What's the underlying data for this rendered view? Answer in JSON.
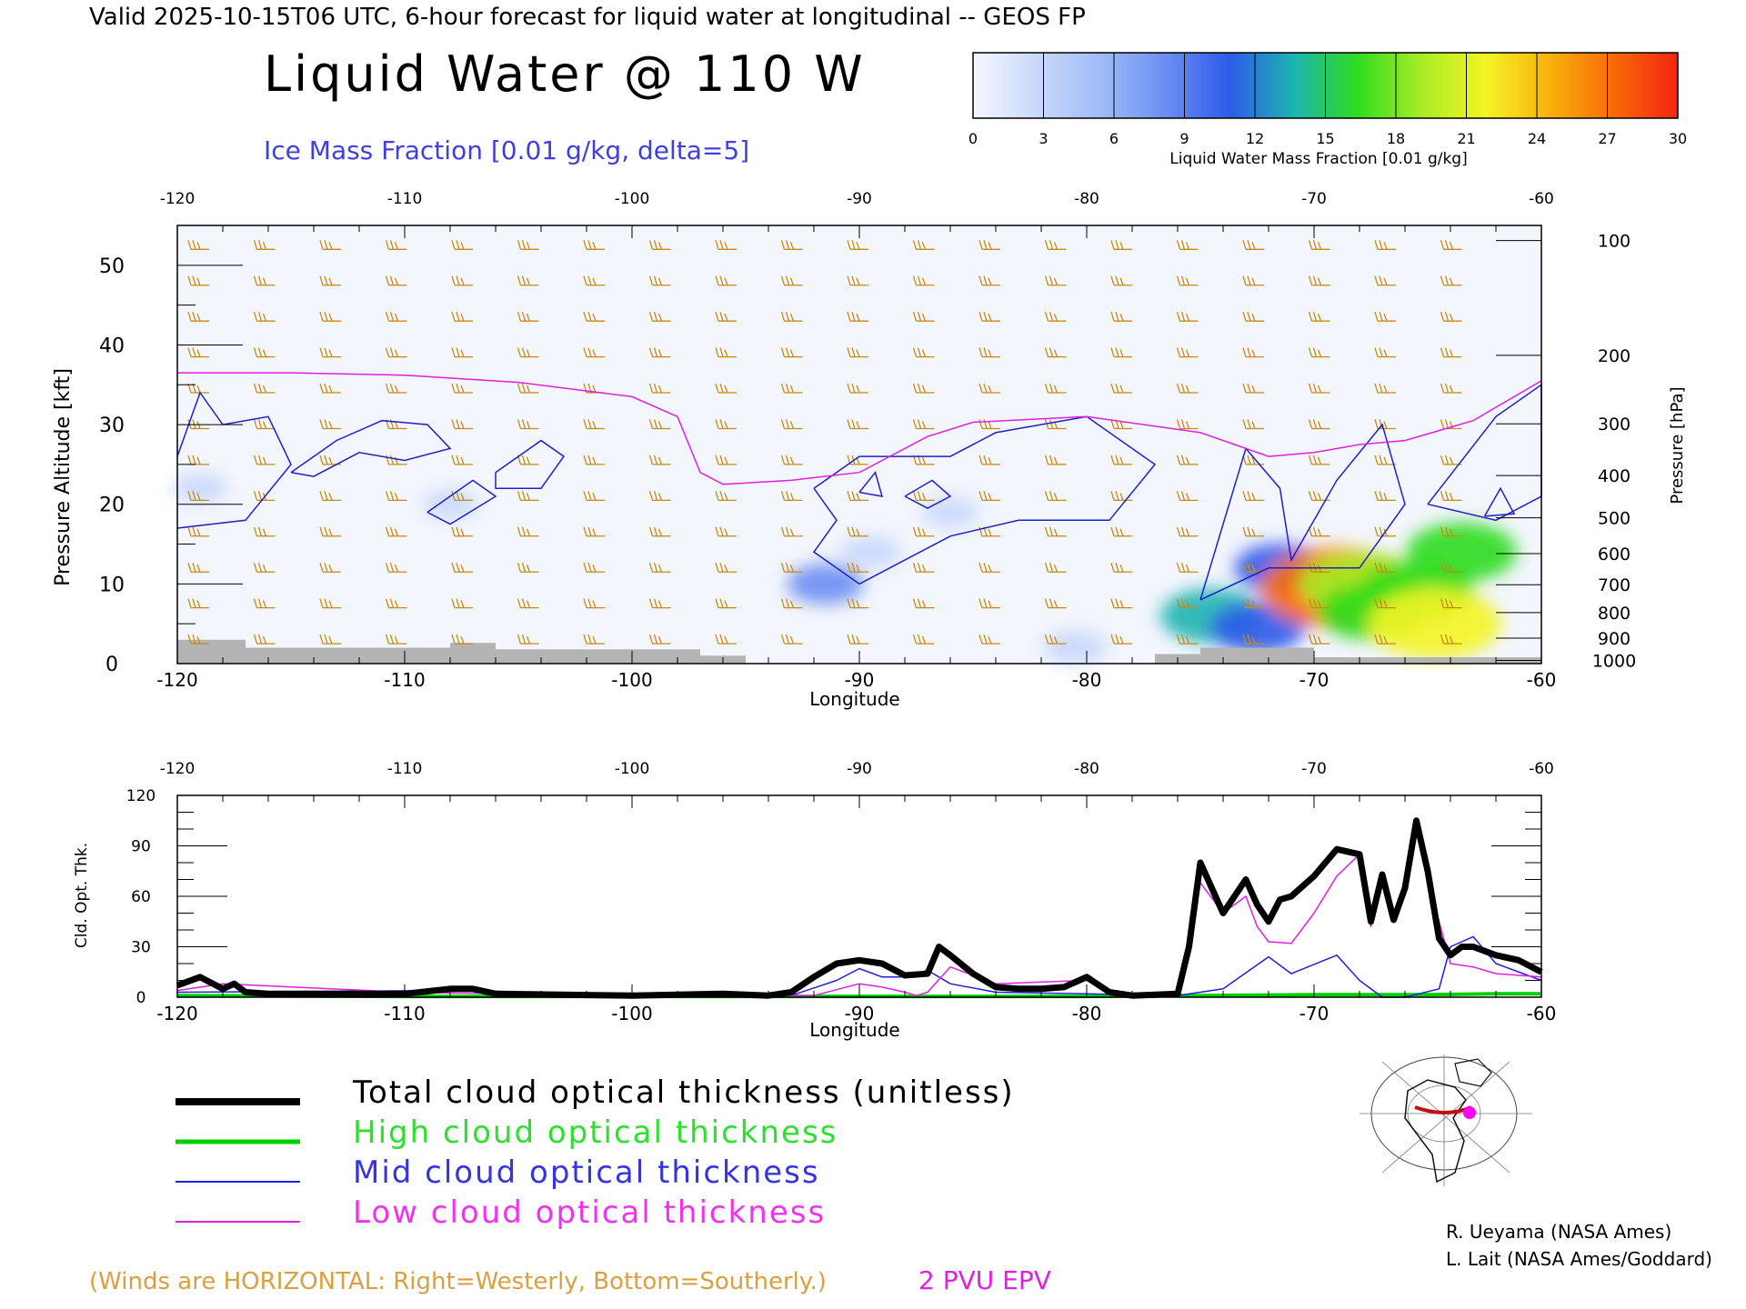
{
  "header": {
    "valid_line": "Valid 2025-10-15T06 UTC, 6-hour forecast for liquid water at longitudinal -- GEOS FP",
    "title": "Liquid Water @ 110 W",
    "subtitle": "Ice Mass Fraction [0.01 g/kg, delta=5]"
  },
  "colorbar": {
    "label": "Liquid Water Mass Fraction [0.01 g/kg]",
    "ticks": [
      "0",
      "3",
      "6",
      "9",
      "12",
      "15",
      "18",
      "21",
      "24",
      "27",
      "30"
    ],
    "colors": [
      "#f4f7fe",
      "#c9d8fb",
      "#9fbbf7",
      "#6b8ef2",
      "#2e5ae8",
      "#1cb4b0",
      "#2edc1f",
      "#a9ec26",
      "#f4f424",
      "#f8b10d",
      "#f86a08",
      "#f32412"
    ]
  },
  "chart_data": [
    {
      "type": "heatmap",
      "name": "cross-section",
      "title": "Liquid Water @ 110 W",
      "xlabel": "Longitude",
      "ylabel": "Pressure Altitude [kft]",
      "y2label": "Pressure [hPa]",
      "xlim": [
        -120,
        -60
      ],
      "ylim": [
        0,
        55
      ],
      "x_ticks": [
        "-120",
        "-110",
        "-100",
        "-90",
        "-80",
        "-70",
        "-60"
      ],
      "x_ticks_top": [
        "-120",
        "-110",
        "-100",
        "-90",
        "-80",
        "-70",
        "-60"
      ],
      "y_ticks": [
        "0",
        "10",
        "20",
        "30",
        "40",
        "50"
      ],
      "pressure_ticks": [
        {
          "label": "100",
          "alt_kft": 53.1
        },
        {
          "label": "200",
          "alt_kft": 38.7
        },
        {
          "label": "300",
          "alt_kft": 30.1
        },
        {
          "label": "400",
          "alt_kft": 23.6
        },
        {
          "label": "500",
          "alt_kft": 18.3
        },
        {
          "label": "600",
          "alt_kft": 13.8
        },
        {
          "label": "700",
          "alt_kft": 9.9
        },
        {
          "label": "800",
          "alt_kft": 6.4
        },
        {
          "label": "900",
          "alt_kft": 3.2
        },
        {
          "label": "1000",
          "alt_kft": 0.4
        }
      ],
      "pvu_2_line": [
        [
          -120,
          36.5
        ],
        [
          -115,
          36.5
        ],
        [
          -110,
          36.2
        ],
        [
          -105,
          35.3
        ],
        [
          -100,
          33.5
        ],
        [
          -98,
          31
        ],
        [
          -97,
          24
        ],
        [
          -96,
          22.5
        ],
        [
          -93,
          23
        ],
        [
          -90,
          24
        ],
        [
          -87,
          28.5
        ],
        [
          -85,
          30.3
        ],
        [
          -80,
          31
        ],
        [
          -75,
          29
        ],
        [
          -72,
          26
        ],
        [
          -70,
          26.5
        ],
        [
          -68,
          27.5
        ],
        [
          -66,
          28
        ],
        [
          -63,
          30.5
        ],
        [
          -60,
          35.5
        ]
      ],
      "ice_contours": [
        [
          [
            -120,
            26
          ],
          [
            -119,
            34
          ],
          [
            -118,
            30
          ],
          [
            -116,
            31
          ],
          [
            -115,
            25
          ],
          [
            -117,
            18
          ],
          [
            -120,
            17
          ]
        ],
        [
          [
            -115,
            24
          ],
          [
            -113,
            28
          ],
          [
            -111,
            30.5
          ],
          [
            -109,
            30
          ],
          [
            -108,
            27
          ],
          [
            -110,
            25.5
          ],
          [
            -112,
            26.5
          ],
          [
            -114,
            23.5
          ],
          [
            -115,
            24
          ]
        ],
        [
          [
            -109,
            19
          ],
          [
            -107,
            23
          ],
          [
            -106,
            21
          ],
          [
            -108,
            17.5
          ],
          [
            -109,
            19
          ]
        ],
        [
          [
            -106,
            24
          ],
          [
            -104,
            28
          ],
          [
            -103,
            26
          ],
          [
            -104,
            22
          ],
          [
            -106,
            22
          ],
          [
            -106,
            24
          ]
        ],
        [
          [
            -92,
            22
          ],
          [
            -90,
            26
          ],
          [
            -86,
            26
          ],
          [
            -84,
            29
          ],
          [
            -80,
            31
          ],
          [
            -77,
            25
          ],
          [
            -79,
            18
          ],
          [
            -83,
            18
          ],
          [
            -86,
            16
          ],
          [
            -88,
            13
          ],
          [
            -90,
            10
          ],
          [
            -92,
            14
          ],
          [
            -91,
            18
          ],
          [
            -92,
            22
          ]
        ],
        [
          [
            -90,
            21.5
          ],
          [
            -89.3,
            24
          ],
          [
            -89,
            21
          ],
          [
            -90,
            21.5
          ]
        ],
        [
          [
            -88,
            21
          ],
          [
            -86.8,
            23
          ],
          [
            -86,
            21
          ],
          [
            -87,
            19.5
          ],
          [
            -88,
            21
          ]
        ],
        [
          [
            -75,
            8
          ],
          [
            -73,
            27
          ],
          [
            -71.5,
            22
          ],
          [
            -71,
            13
          ],
          [
            -69,
            23
          ],
          [
            -67,
            30
          ],
          [
            -66,
            20
          ],
          [
            -68,
            12
          ],
          [
            -72,
            12
          ],
          [
            -75,
            8
          ]
        ],
        [
          [
            -65,
            20
          ],
          [
            -62,
            31
          ],
          [
            -60,
            35
          ],
          [
            -60,
            21
          ],
          [
            -62,
            18
          ],
          [
            -65,
            20
          ]
        ],
        [
          [
            -62.5,
            18.5
          ],
          [
            -61.8,
            22
          ],
          [
            -61.2,
            18.8
          ],
          [
            -62.5,
            18.5
          ]
        ]
      ],
      "liquid_water_patches": [
        {
          "lon": -119,
          "alt_kft": 22,
          "value": 1.5
        },
        {
          "lon": -108,
          "alt_kft": 20,
          "value": 1.5
        },
        {
          "lon": -91.5,
          "alt_kft": 10,
          "value": 7
        },
        {
          "lon": -89.5,
          "alt_kft": 14,
          "value": 3
        },
        {
          "lon": -86,
          "alt_kft": 19,
          "value": 2
        },
        {
          "lon": -80.5,
          "alt_kft": 2,
          "value": 4
        },
        {
          "lon": -74.5,
          "alt_kft": 6,
          "value": 14
        },
        {
          "lon": -72.5,
          "alt_kft": 4.5,
          "value": 12
        },
        {
          "lon": -71.5,
          "alt_kft": 12,
          "value": 11
        },
        {
          "lon": -69,
          "alt_kft": 9.5,
          "value": 27
        },
        {
          "lon": -68,
          "alt_kft": 10,
          "value": 19
        },
        {
          "lon": -67.5,
          "alt_kft": 6.5,
          "value": 15
        },
        {
          "lon": -65.5,
          "alt_kft": 9,
          "value": 17
        },
        {
          "lon": -64.7,
          "alt_kft": 5,
          "value": 22
        },
        {
          "lon": -63.5,
          "alt_kft": 14,
          "value": 16
        }
      ],
      "terrain": [
        [
          -120,
          3
        ],
        [
          -117,
          3
        ],
        [
          -117,
          2
        ],
        [
          -108,
          2
        ],
        [
          -108,
          2.6
        ],
        [
          -106,
          2.6
        ],
        [
          -106,
          1.8
        ],
        [
          -97,
          1.8
        ],
        [
          -97,
          1
        ],
        [
          -95,
          1
        ],
        [
          -95,
          0
        ],
        [
          -77,
          0
        ],
        [
          -77,
          1.2
        ],
        [
          -75,
          1.2
        ],
        [
          -75,
          2
        ],
        [
          -70,
          2
        ],
        [
          -70,
          0.8
        ],
        [
          -60,
          0.8
        ],
        [
          -60,
          0
        ],
        [
          -120,
          0
        ]
      ]
    },
    {
      "type": "line",
      "name": "cloud-optical-thickness",
      "xlabel": "Longitude",
      "ylabel": "Cld. Opt. Thk.",
      "xlim": [
        -120,
        -60
      ],
      "ylim": [
        0,
        120
      ],
      "x_ticks": [
        "-120",
        "-110",
        "-100",
        "-90",
        "-80",
        "-70",
        "-60"
      ],
      "x_ticks_top": [
        "-120",
        "-110",
        "-100",
        "-90",
        "-80",
        "-70",
        "-60"
      ],
      "y_ticks": [
        "0",
        "30",
        "60",
        "90",
        "120"
      ],
      "series": [
        {
          "name": "Total cloud optical thickness (unitless)",
          "color": "#000000",
          "width": 7,
          "x": [
            -120,
            -119,
            -118,
            -117.5,
            -117,
            -116,
            -114,
            -110,
            -108,
            -107,
            -106,
            -100,
            -96,
            -94,
            -93,
            -92,
            -91,
            -90,
            -89,
            -88,
            -87,
            -86.5,
            -86,
            -85,
            -84,
            -83,
            -82,
            -81,
            -80,
            -79,
            -78,
            -76,
            -75.5,
            -75,
            -74,
            -73.5,
            -73,
            -72.5,
            -72,
            -71.5,
            -71,
            -70,
            -69,
            -68,
            -67.5,
            -67,
            -66.5,
            -66,
            -65.5,
            -65,
            -64.5,
            -64,
            -63.5,
            -63,
            -62,
            -61,
            -60
          ],
          "y": [
            7,
            12,
            5,
            8,
            3,
            2,
            2,
            2,
            5,
            5,
            2,
            1,
            2,
            1,
            3,
            12,
            20,
            22,
            20,
            13,
            14,
            30,
            25,
            14,
            6,
            5,
            5,
            6,
            12,
            3,
            1,
            2,
            30,
            80,
            50,
            60,
            70,
            55,
            45,
            58,
            60,
            72,
            88,
            85,
            45,
            73,
            46,
            65,
            105,
            75,
            35,
            25,
            30,
            30,
            25,
            22,
            15
          ]
        },
        {
          "name": "High cloud optical thickness",
          "color": "#00d000",
          "width": 4,
          "x": [
            -120,
            -110,
            -100,
            -90,
            -80,
            -75,
            -70,
            -65,
            -62,
            -60
          ],
          "y": [
            1,
            0.5,
            0.5,
            0.5,
            0.5,
            1,
            1.5,
            1.5,
            2,
            2
          ]
        },
        {
          "name": "Mid cloud optical thickness",
          "color": "#2020e0",
          "width": 1.5,
          "x": [
            -120,
            -108,
            -107,
            -100,
            -93,
            -91,
            -90,
            -89,
            -88,
            -87,
            -86,
            -84,
            -80,
            -76,
            -74,
            -72,
            -71,
            -69,
            -68,
            -67,
            -66,
            -64.5,
            -64,
            -63,
            -62,
            -60
          ],
          "y": [
            3,
            4,
            4,
            1,
            1,
            10,
            17,
            12,
            12,
            16,
            8,
            3,
            2,
            1,
            5,
            24,
            14,
            25,
            10,
            0,
            0,
            5,
            30,
            36,
            20,
            10
          ]
        },
        {
          "name": "Low cloud optical thickness",
          "color": "#e020e0",
          "width": 1.5,
          "x": [
            -120,
            -118,
            -110,
            -100,
            -92,
            -90,
            -89,
            -88,
            -87.5,
            -87,
            -86,
            -84,
            -80,
            -79,
            -76,
            -75.5,
            -75,
            -74,
            -73,
            -72.5,
            -72,
            -71,
            -70,
            -69,
            -68,
            -67.5,
            -67,
            -66.5,
            -66,
            -65.5,
            -65,
            -64,
            -63,
            -62,
            -60
          ],
          "y": [
            4,
            8,
            3,
            1,
            1,
            8,
            6,
            3,
            1,
            3,
            18,
            8,
            10,
            2,
            1,
            28,
            68,
            50,
            60,
            42,
            33,
            32,
            50,
            72,
            85,
            42,
            72,
            45,
            62,
            100,
            70,
            20,
            18,
            14,
            12
          ]
        }
      ]
    }
  ],
  "legend": {
    "total_label": "Total cloud optical thickness (unitless)",
    "high_label": "High cloud optical thickness",
    "mid_label": "Mid cloud optical thickness",
    "low_label": "Low cloud optical thickness"
  },
  "footer": {
    "winds_note": "(Winds are HORIZONTAL: Right=Westerly, Bottom=Southerly.)",
    "pvu_label": "2 PVU EPV",
    "credit_1": "R. Ueyama (NASA Ames)",
    "credit_2": "L. Lait (NASA Ames/Goddard)"
  },
  "colors": {
    "wind_barb": "#c88a10",
    "pvu": "#e020e0",
    "ice": "#2020c8",
    "terrain": "#b4b4b4",
    "map_section": "#c01010",
    "map_marker": "#ff00ff"
  }
}
